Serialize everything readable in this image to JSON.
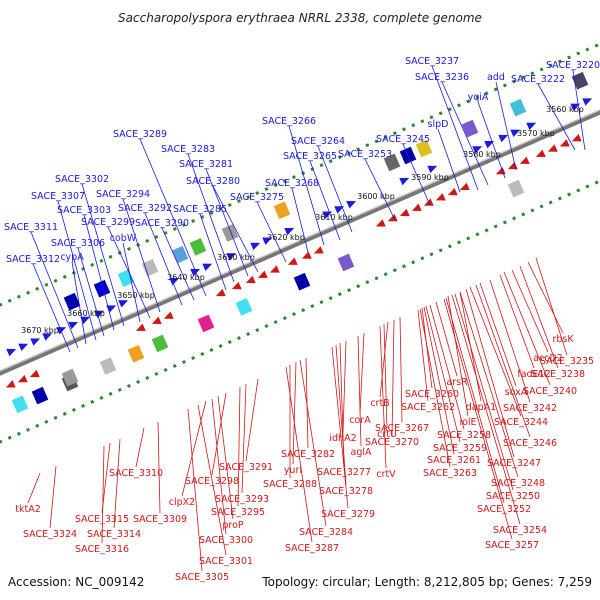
{
  "title": "Saccharopolyspora erythraea NRRL 2338, complete genome",
  "footer": {
    "accession": "Accession: NC_009142",
    "topology": "Topology: circular; Length: 8,212,805 bp; Genes: 7,259"
  },
  "colors": {
    "forward": "#1a1ae0",
    "reverse": "#d01818",
    "backbone": "#777777",
    "tick": "#2a8a2a"
  },
  "kbp_labels": [
    "3560 kbp",
    "3570 kbp",
    "3580 kbp",
    "3590 kbp",
    "3600 kbp",
    "3610 kbp",
    "3620 kbp",
    "3630 kbp",
    "3640 kbp",
    "3650 kbp",
    "3660 kbp",
    "3670 kbp"
  ],
  "top_labels": [
    "SACE_3220",
    "SACE_3222",
    "add",
    "yqiA",
    "SACE_3236",
    "SACE_3237",
    "slpD",
    "SACE_3245",
    "SACE_3253",
    "SACE_3264",
    "SACE_3265",
    "SACE_3266",
    "SACE_3268",
    "SACE_3275",
    "SACE_3280",
    "SACE_3281",
    "SACE_3283",
    "SACE_3285",
    "SACE_3289",
    "SACE_3290",
    "SACE_3292",
    "SACE_3294",
    "SACE_3299",
    "SACE_3302",
    "SACE_3303",
    "SACE_3306",
    "SACE_3307",
    "SACE_3311",
    "SACE_3312",
    "cobW",
    "cypA"
  ],
  "bottom_labels": [
    "rbsK",
    "SACE_3235",
    "SACE_3238",
    "accD2",
    "fadE12",
    "SACE_3240",
    "SACE_3242",
    "soxA",
    "dapA1",
    "SACE_3244",
    "iolE",
    "SACE_3246",
    "SACE_3247",
    "SACE_3248",
    "SACE_3250",
    "SACE_3252",
    "SACE_3254",
    "SACE_3257",
    "arsR",
    "SACE_3260",
    "SACE_3262",
    "SACE_3258",
    "SACE_3259",
    "SACE_3261",
    "SACE_3263",
    "SACE_3267",
    "SACE_3270",
    "crtB",
    "crtU",
    "crtV",
    "corA",
    "aglA",
    "idhA2",
    "SACE_3277",
    "SACE_3278",
    "SACE_3279",
    "SACE_3282",
    "yurI",
    "SACE_3288",
    "SACE_3284",
    "SACE_3287",
    "SACE_3291",
    "SACE_3293",
    "SACE_3295",
    "SACE_3298",
    "clpX2",
    "proP",
    "SACE_3300",
    "SACE_3301",
    "SACE_3305",
    "SACE_3309",
    "SACE_3310",
    "SACE_3314",
    "SACE_3315",
    "SACE_3316",
    "SACE_3324",
    "tktA2"
  ]
}
